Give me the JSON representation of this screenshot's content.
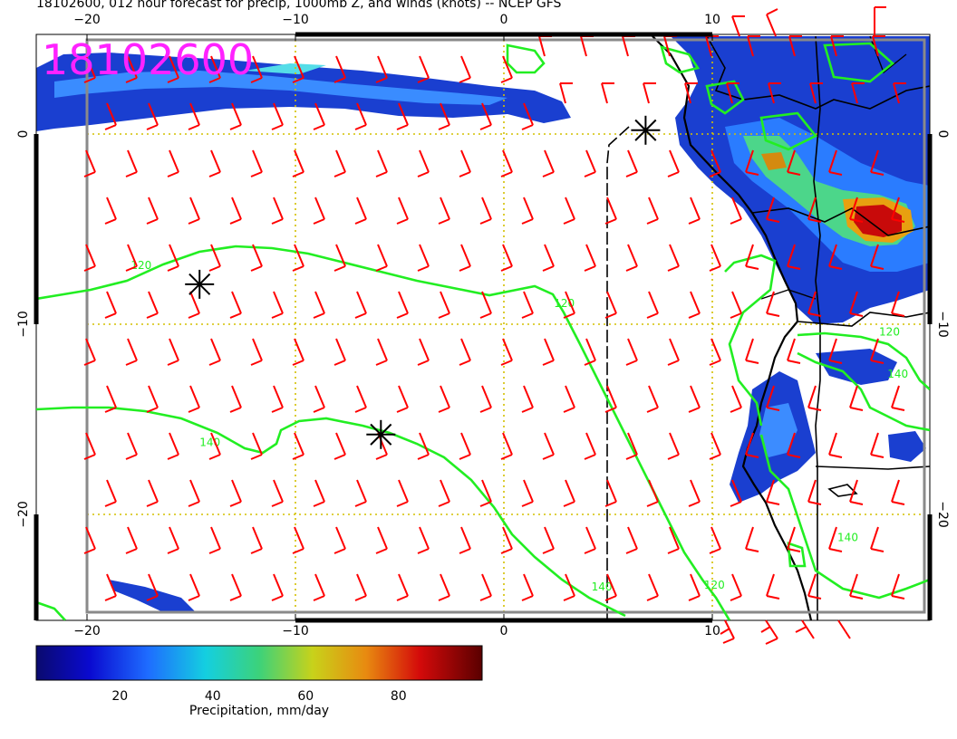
{
  "title": "18102600, 012 hour forecast for precip, 1000mb Z, and winds (knots) -- NCEP GFS",
  "stamp": "18102600",
  "colors": {
    "wind_barb": "#ff0000",
    "contour": "#22ee22",
    "coast": "#000000",
    "grid_dotted": "#d4c000",
    "stamp": "#ff22ff"
  },
  "axes": {
    "lon_ticks": [
      {
        "value": -20,
        "label": "−20"
      },
      {
        "value": -10,
        "label": "−10"
      },
      {
        "value": 0,
        "label": "0"
      },
      {
        "value": 10,
        "label": "10"
      }
    ],
    "lat_ticks": [
      {
        "value": 0,
        "label": "0"
      },
      {
        "value": -10,
        "label": "−10"
      },
      {
        "value": -20,
        "label": "−20"
      }
    ],
    "lon_range": [
      -22.5,
      20.4
    ],
    "lat_range": [
      -25.6,
      5.2
    ]
  },
  "contours": [
    {
      "label": "120"
    },
    {
      "label": "140"
    }
  ],
  "contour_labels": [
    {
      "text": "120",
      "lon": -17.4,
      "lat": -7.1
    },
    {
      "text": "120",
      "lon": 2.9,
      "lat": -9.1
    },
    {
      "text": "140",
      "lon": -14.1,
      "lat": -16.4
    },
    {
      "text": "140",
      "lon": 4.7,
      "lat": -24.0
    },
    {
      "text": "120",
      "lon": 10.1,
      "lat": -23.9
    },
    {
      "text": "120",
      "lon": 18.5,
      "lat": -10.6
    },
    {
      "text": "140",
      "lon": 18.9,
      "lat": -12.8
    },
    {
      "text": "140",
      "lon": 16.5,
      "lat": -21.4
    }
  ],
  "high_markers": [
    {
      "lon": -14.6,
      "lat": -7.9
    },
    {
      "lon": -5.9,
      "lat": -15.8
    },
    {
      "lon": 6.8,
      "lat": 0.2
    }
  ],
  "colorbar": {
    "label": "Precipitation, mm/day",
    "ticks": [
      {
        "value": 20,
        "label": "20"
      },
      {
        "value": 40,
        "label": "40"
      },
      {
        "value": 60,
        "label": "60"
      },
      {
        "value": 80,
        "label": "80"
      }
    ],
    "range": [
      2,
      98
    ]
  }
}
